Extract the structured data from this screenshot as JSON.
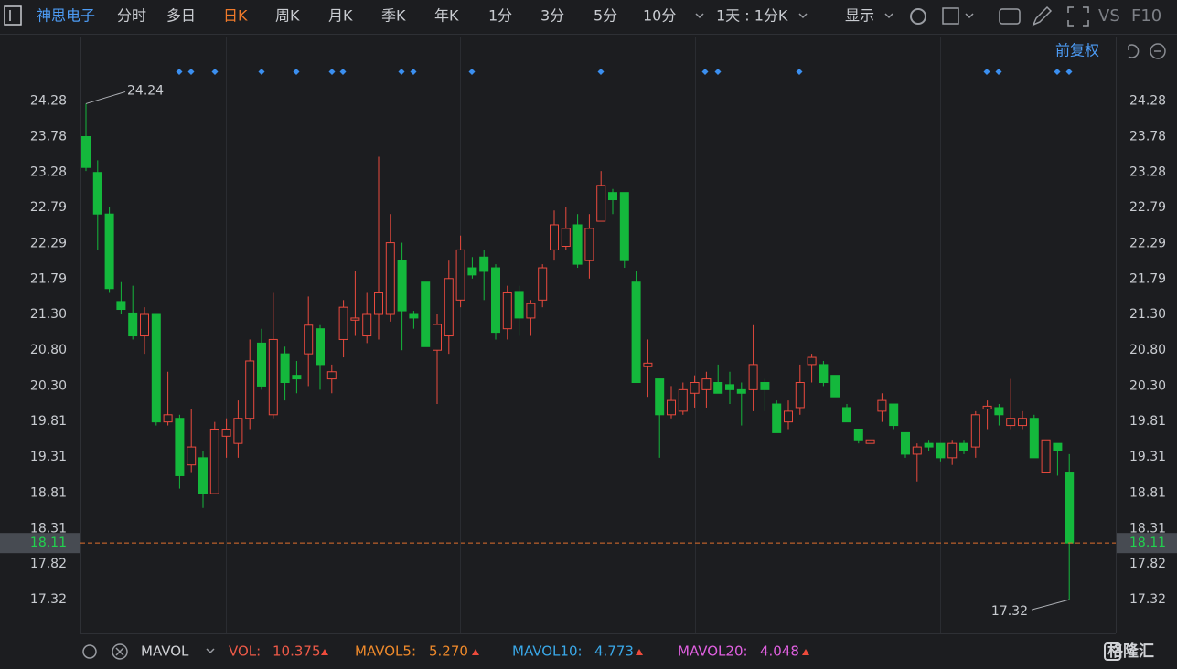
{
  "toolbar": {
    "stock_name": "神思电子",
    "periods": [
      "分时",
      "多日",
      "日K",
      "周K",
      "月K",
      "季K",
      "年K",
      "1分",
      "3分",
      "5分",
      "10分"
    ],
    "range": "1天 : 1分K",
    "display": "显示",
    "vs": "VS",
    "f10": "F10"
  },
  "adjust": "前复权",
  "chart_data": {
    "type": "candlestick",
    "up_color": "#ea4a3e",
    "down_color": "#14b83c",
    "ylim": [
      16.85,
      24.73
    ],
    "yticks": [
      24.28,
      23.78,
      23.28,
      22.79,
      22.29,
      21.79,
      {
        "value": 21.3,
        "label": "21.30"
      },
      {
        "value": 20.8,
        "label": "20.80"
      },
      {
        "value": 20.3,
        "label": "20.30"
      },
      19.81,
      19.31,
      18.81,
      18.31,
      17.82,
      17.32
    ],
    "open": [
      23.78,
      23.28,
      22.7,
      21.48,
      21.32,
      21.0,
      21.3,
      19.8,
      19.85,
      19.2,
      19.3,
      18.8,
      19.6,
      19.5,
      19.85,
      20.9,
      19.9,
      20.75,
      20.45,
      20.75,
      21.1,
      20.4,
      20.95,
      21.22,
      21.0,
      21.3,
      21.3,
      22.05,
      21.3,
      21.75,
      20.8,
      21.0,
      21.5,
      21.95,
      22.1,
      21.95,
      21.1,
      21.62,
      21.25,
      21.5,
      22.2,
      22.25,
      22.55,
      22.05,
      22.6,
      23.0,
      23.0,
      21.75,
      20.57,
      20.4,
      19.9,
      19.95,
      20.2,
      20.25,
      20.35,
      20.32,
      20.25,
      20.25,
      20.35,
      20.05,
      19.8,
      20.0,
      20.6,
      20.6,
      20.45,
      20.0,
      19.7,
      19.5,
      19.95,
      20.05,
      19.65,
      19.35,
      19.5,
      19.5,
      19.3,
      19.5,
      19.45,
      19.98,
      20.0,
      19.75,
      19.75,
      19.85,
      19.1,
      19.5,
      19.1
    ],
    "high": [
      24.24,
      23.45,
      22.8,
      21.75,
      21.7,
      21.4,
      21.3,
      20.5,
      19.9,
      19.98,
      19.4,
      19.8,
      19.85,
      20.1,
      20.95,
      21.1,
      21.6,
      20.85,
      20.65,
      21.55,
      21.15,
      20.6,
      21.5,
      21.9,
      21.6,
      23.5,
      22.7,
      22.3,
      21.35,
      21.75,
      21.3,
      22.05,
      22.4,
      22.1,
      22.2,
      22.0,
      21.7,
      21.7,
      21.5,
      22.0,
      22.75,
      22.8,
      22.7,
      22.7,
      23.3,
      23.05,
      23.0,
      21.9,
      20.95,
      20.4,
      20.3,
      20.35,
      20.45,
      20.5,
      20.6,
      20.5,
      20.35,
      21.15,
      20.4,
      20.1,
      20.1,
      20.6,
      20.75,
      20.65,
      20.45,
      20.05,
      19.7,
      19.55,
      20.2,
      20.05,
      19.65,
      19.5,
      19.55,
      19.5,
      19.55,
      19.55,
      19.95,
      20.1,
      20.05,
      20.4,
      19.95,
      19.9,
      19.55,
      19.5,
      19.35
    ],
    "low": [
      23.3,
      22.2,
      21.6,
      21.3,
      20.95,
      20.75,
      19.75,
      19.75,
      18.87,
      19.1,
      18.6,
      18.8,
      19.3,
      19.3,
      19.7,
      20.25,
      19.85,
      20.1,
      20.2,
      20.3,
      20.25,
      20.2,
      20.7,
      21.0,
      20.9,
      20.95,
      21.2,
      20.8,
      21.1,
      20.85,
      20.05,
      20.75,
      21.4,
      21.8,
      21.5,
      20.95,
      20.95,
      21.0,
      21.0,
      21.4,
      22.05,
      22.2,
      21.95,
      21.8,
      22.6,
      22.7,
      21.95,
      20.35,
      20.15,
      19.3,
      19.85,
      19.9,
      20.0,
      20.0,
      20.2,
      20.05,
      19.75,
      19.95,
      19.95,
      19.65,
      19.7,
      19.9,
      20.35,
      20.3,
      20.15,
      19.8,
      19.5,
      19.5,
      19.8,
      19.7,
      19.3,
      18.97,
      19.4,
      19.25,
      19.2,
      19.35,
      19.3,
      19.7,
      19.75,
      19.7,
      19.7,
      19.3,
      19.1,
      19.05,
      17.32
    ],
    "close": [
      23.35,
      22.7,
      21.66,
      21.37,
      21.0,
      21.3,
      19.8,
      19.9,
      19.05,
      19.45,
      18.8,
      19.7,
      19.7,
      19.85,
      20.65,
      20.3,
      20.95,
      20.35,
      20.4,
      21.15,
      20.6,
      20.5,
      21.4,
      21.25,
      21.3,
      21.6,
      22.3,
      21.35,
      21.25,
      20.85,
      21.16,
      21.8,
      22.2,
      21.85,
      21.9,
      21.05,
      21.6,
      21.25,
      21.45,
      21.95,
      22.55,
      22.5,
      22.0,
      22.5,
      23.1,
      22.9,
      22.05,
      20.35,
      20.62,
      19.9,
      20.1,
      20.25,
      20.35,
      20.4,
      20.2,
      20.25,
      20.2,
      20.6,
      20.25,
      19.65,
      19.95,
      20.35,
      20.7,
      20.35,
      20.15,
      19.8,
      19.55,
      19.55,
      20.1,
      19.75,
      19.35,
      19.45,
      19.45,
      19.3,
      19.5,
      19.4,
      19.9,
      20.02,
      19.9,
      19.85,
      19.85,
      19.3,
      19.55,
      19.4,
      18.11
    ],
    "last_price": 18.11,
    "annotations": [
      24.24,
      17.32
    ]
  },
  "indicator": {
    "name": "MAVOL",
    "items": [
      {
        "label": "VOL:",
        "value": "10.375"
      },
      {
        "label": "MAVOL5:",
        "value": "5.270"
      },
      {
        "label": "MAVOL10:",
        "value": "4.773"
      },
      {
        "label": "MAVOL20:",
        "value": "4.048"
      }
    ]
  },
  "watermark": "格隆汇"
}
